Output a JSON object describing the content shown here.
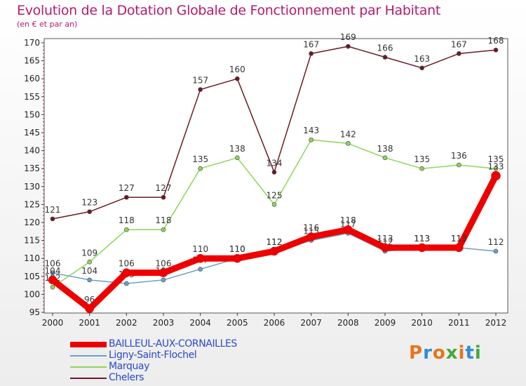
{
  "chart_data": {
    "type": "line",
    "title": "Evolution de la Dotation Globale de Fonctionnement par Habitant",
    "subtitle": "(en € et par an)",
    "x": [
      2000,
      2001,
      2002,
      2003,
      2004,
      2005,
      2006,
      2007,
      2008,
      2009,
      2010,
      2011,
      2012
    ],
    "ylim": [
      95,
      170
    ],
    "yticks": [
      95,
      100,
      105,
      110,
      115,
      120,
      125,
      130,
      135,
      140,
      145,
      150,
      155,
      160,
      165,
      170
    ],
    "grid": false,
    "legend": "bottom-left",
    "series": [
      {
        "name": "Chelers",
        "color": "#6b1a24",
        "values": [
          121,
          123,
          127,
          127,
          157,
          160,
          134,
          167,
          169,
          166,
          163,
          167,
          168
        ]
      },
      {
        "name": "Marquay",
        "color": "#8ed45a",
        "values": [
          102,
          109,
          118,
          118,
          135,
          138,
          125,
          143,
          142,
          138,
          135,
          136,
          135
        ]
      },
      {
        "name": "Ligny-Saint-Flochel",
        "color": "#6aa0c8",
        "values": [
          106,
          104,
          103,
          104,
          107,
          110,
          112,
          115,
          117,
          112,
          113,
          113,
          112
        ]
      },
      {
        "name": "BAILLEUL-AUX-CORNAILLES",
        "color": "#ee0000",
        "values": [
          104,
          96,
          106,
          106,
          110,
          110,
          112,
          116,
          118,
          113,
          113,
          113,
          133
        ]
      }
    ]
  },
  "brand": {
    "text": "Proxiti",
    "colors": [
      "#e8741c",
      "#2c8fd6",
      "#e8741c",
      "#46a83c",
      "#e8741c",
      "#2c8fd6",
      "#46a83c"
    ]
  }
}
